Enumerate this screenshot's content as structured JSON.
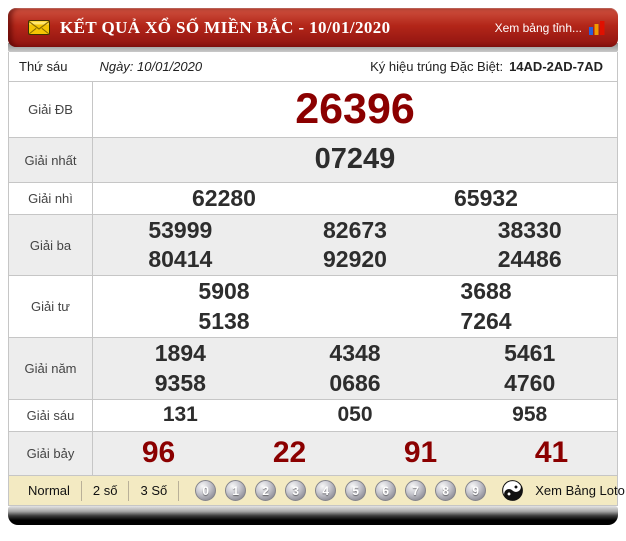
{
  "header": {
    "title": "KẾT QUẢ XỔ SỐ MIỀN BẮC - 10/01/2020",
    "province_link": "Xem bảng tỉnh..."
  },
  "subheader": {
    "weekday": "Thứ sáu",
    "date": "Ngày: 10/01/2020",
    "special_symbol_label": "Ký hiệu trúng Đặc Biệt:",
    "special_symbol_value": "14AD-2AD-7AD"
  },
  "results": [
    {
      "id": "db",
      "label": "Giải ĐB",
      "lines": [
        [
          "26396"
        ]
      ]
    },
    {
      "id": "nhat",
      "label": "Giải nhất",
      "lines": [
        [
          "07249"
        ]
      ]
    },
    {
      "id": "nhi",
      "label": "Giải nhì",
      "lines": [
        [
          "62280",
          "65932"
        ]
      ]
    },
    {
      "id": "ba",
      "label": "Giải ba",
      "lines": [
        [
          "53999",
          "82673",
          "38330"
        ],
        [
          "80414",
          "92920",
          "24486"
        ]
      ]
    },
    {
      "id": "tu",
      "label": "Giải tư",
      "lines": [
        [
          "5908",
          "3688"
        ],
        [
          "5138",
          "7264"
        ]
      ]
    },
    {
      "id": "nam",
      "label": "Giải năm",
      "lines": [
        [
          "1894",
          "4348",
          "5461"
        ],
        [
          "9358",
          "0686",
          "4760"
        ]
      ]
    },
    {
      "id": "sau",
      "label": "Giải sáu",
      "lines": [
        [
          "131",
          "050",
          "958"
        ]
      ]
    },
    {
      "id": "bay",
      "label": "Giải bảy",
      "lines": [
        [
          "96",
          "22",
          "91",
          "41"
        ]
      ]
    }
  ],
  "toolbar": {
    "filters": [
      "Normal",
      "2 số",
      "3 Số"
    ],
    "digit_balls": [
      "0",
      "1",
      "2",
      "3",
      "4",
      "5",
      "6",
      "7",
      "8",
      "9"
    ],
    "yin_yang_ball": "yin-yang",
    "loto_link": "Xem Bảng Loto"
  },
  "icons": {
    "envelope": "envelope-icon",
    "bar_chart": "bar-chart-icon"
  },
  "colors": {
    "header_red": "#b32619",
    "special_number": "#8b0000",
    "number": "#2d2d2d",
    "row_alt": "#ededed",
    "toolbar_bg": "#f3eac2",
    "border": "#c6c6c6"
  }
}
